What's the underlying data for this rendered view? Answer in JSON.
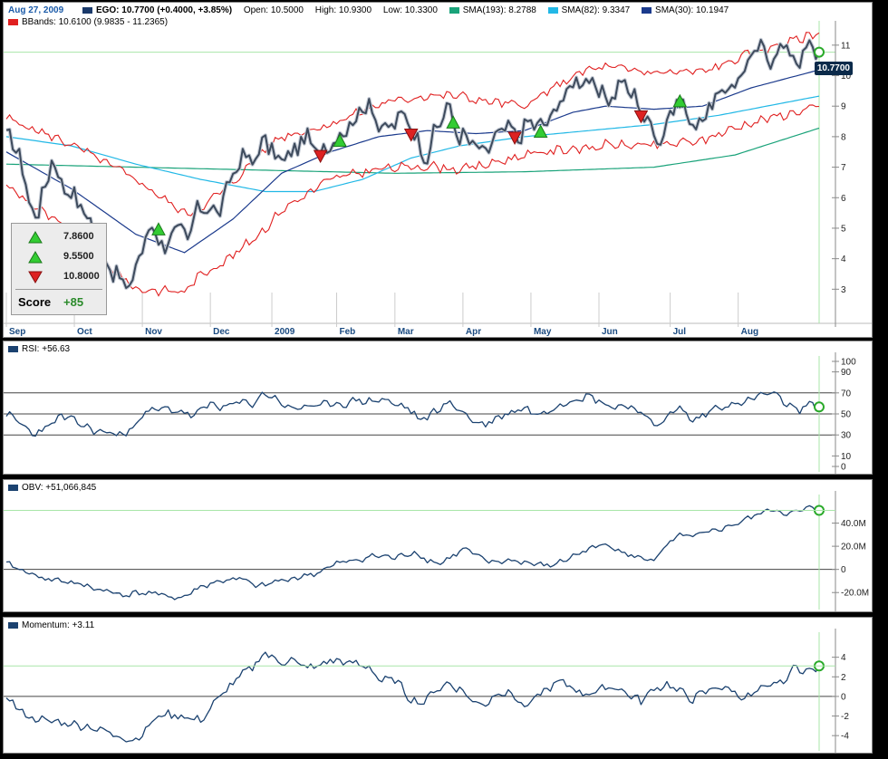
{
  "header": {
    "date": "Aug 27, 2009",
    "ticker_label": "EGO: 10.7700 (+0.4000, +3.85%)",
    "open": "Open: 10.5000",
    "high": "High: 10.9300",
    "low": "Low: 10.3300",
    "sma193": "SMA(193): 8.2788",
    "sma82": "SMA(82): 9.3347",
    "sma30": "SMA(30): 10.1947",
    "bbands": "BBands: 10.6100 (9.9835 - 11.2365)"
  },
  "colors": {
    "price": "#3d4a5c",
    "sma193": "#1aa37a",
    "sma82": "#22b8e6",
    "sma30": "#1b3a8c",
    "bbands": "#e02020",
    "indicator": "#1b4270",
    "buy": "#33cc33",
    "sell": "#dd2222"
  },
  "price_tag": "10.7700",
  "score_box": {
    "signals": [
      {
        "icon": "buy-signal-icon",
        "value": "7.8600"
      },
      {
        "icon": "buy-signal-icon",
        "value": "9.5500"
      },
      {
        "icon": "sell-signal-icon",
        "value": "10.8000"
      }
    ],
    "label": "Score",
    "score": "+85"
  },
  "rsi_label": "RSI: +56.63",
  "obv_label": "OBV: +51,066,845",
  "momentum_label": "Momentum: +3.11",
  "chart_data": [
    {
      "type": "line",
      "panel": "price",
      "x_labels": [
        "Sep",
        "Oct",
        "Nov",
        "Dec",
        "2009",
        "Feb",
        "Mar",
        "Apr",
        "May",
        "Jun",
        "Jul",
        "Aug"
      ],
      "x_label_index": [
        0,
        21,
        42,
        63,
        82,
        102,
        120,
        141,
        162,
        183,
        205,
        226
      ],
      "ylim": [
        2,
        11.5
      ],
      "yticks": [
        3,
        4,
        5,
        6,
        7,
        8,
        9,
        10,
        11
      ],
      "price_anchors": [
        [
          0,
          8
        ],
        [
          4,
          7.5
        ],
        [
          7,
          5.8
        ],
        [
          10,
          5.5
        ],
        [
          14,
          7.3
        ],
        [
          17,
          6.5
        ],
        [
          22,
          5.9
        ],
        [
          26,
          5.2
        ],
        [
          30,
          4.1
        ],
        [
          35,
          3.3
        ],
        [
          38,
          3.0
        ],
        [
          41,
          4.1
        ],
        [
          44,
          4.9
        ],
        [
          46,
          5.0
        ],
        [
          49,
          4.3
        ],
        [
          52,
          5.0
        ],
        [
          56,
          4.6
        ],
        [
          58,
          5.4
        ],
        [
          62,
          5.8
        ],
        [
          65,
          5.4
        ],
        [
          68,
          6.2
        ],
        [
          72,
          7.3
        ],
        [
          76,
          7.2
        ],
        [
          80,
          7.9
        ],
        [
          84,
          7.2
        ],
        [
          88,
          7.4
        ],
        [
          92,
          8.0
        ],
        [
          96,
          7.5
        ],
        [
          100,
          7.8
        ],
        [
          104,
          8.2
        ],
        [
          108,
          8.6
        ],
        [
          112,
          9.2
        ],
        [
          116,
          8.1
        ],
        [
          120,
          8.5
        ],
        [
          124,
          8.7
        ],
        [
          127,
          7.8
        ],
        [
          130,
          7.4
        ],
        [
          133,
          8.3
        ],
        [
          136,
          9.0
        ],
        [
          140,
          8.0
        ],
        [
          144,
          7.8
        ],
        [
          147,
          7.4
        ],
        [
          150,
          7.8
        ],
        [
          154,
          8.3
        ],
        [
          158,
          8.0
        ],
        [
          162,
          8.5
        ],
        [
          166,
          8.3
        ],
        [
          170,
          9.0
        ],
        [
          174,
          9.6
        ],
        [
          178,
          10.0
        ],
        [
          182,
          9.5
        ],
        [
          186,
          9.2
        ],
        [
          190,
          9.8
        ],
        [
          194,
          9.3
        ],
        [
          198,
          8.5
        ],
        [
          202,
          7.9
        ],
        [
          205,
          8.8
        ],
        [
          208,
          9.2
        ],
        [
          212,
          8.3
        ],
        [
          216,
          8.8
        ],
        [
          220,
          9.3
        ],
        [
          224,
          9.7
        ],
        [
          228,
          10.2
        ],
        [
          232,
          10.9
        ],
        [
          236,
          10.6
        ],
        [
          240,
          11.0
        ],
        [
          244,
          10.5
        ],
        [
          248,
          10.9
        ],
        [
          251,
          10.8
        ]
      ],
      "sma193_anchors": [
        [
          0,
          7.1
        ],
        [
          40,
          7.0
        ],
        [
          80,
          6.9
        ],
        [
          120,
          6.8
        ],
        [
          160,
          6.85
        ],
        [
          200,
          7.0
        ],
        [
          225,
          7.4
        ],
        [
          251,
          8.28
        ]
      ],
      "sma82_anchors": [
        [
          0,
          8.0
        ],
        [
          20,
          7.7
        ],
        [
          40,
          7.1
        ],
        [
          60,
          6.6
        ],
        [
          80,
          6.2
        ],
        [
          95,
          6.2
        ],
        [
          110,
          6.6
        ],
        [
          125,
          7.3
        ],
        [
          140,
          7.7
        ],
        [
          160,
          8.0
        ],
        [
          180,
          8.2
        ],
        [
          200,
          8.4
        ],
        [
          220,
          8.7
        ],
        [
          251,
          9.33
        ]
      ],
      "sma30_anchors": [
        [
          0,
          7.5
        ],
        [
          20,
          6.3
        ],
        [
          40,
          4.8
        ],
        [
          55,
          4.2
        ],
        [
          70,
          5.3
        ],
        [
          85,
          6.8
        ],
        [
          100,
          7.5
        ],
        [
          115,
          8.0
        ],
        [
          130,
          8.2
        ],
        [
          145,
          8.1
        ],
        [
          160,
          8.2
        ],
        [
          175,
          8.8
        ],
        [
          185,
          9.0
        ],
        [
          200,
          8.9
        ],
        [
          215,
          9.0
        ],
        [
          230,
          9.6
        ],
        [
          251,
          10.19
        ]
      ],
      "bb_half_width_anchors": [
        [
          0,
          1.1
        ],
        [
          40,
          1.8
        ],
        [
          60,
          1.1
        ],
        [
          80,
          1.3
        ],
        [
          100,
          0.9
        ],
        [
          120,
          1.1
        ],
        [
          140,
          1.2
        ],
        [
          160,
          0.8
        ],
        [
          180,
          1.3
        ],
        [
          200,
          1.2
        ],
        [
          220,
          1.1
        ],
        [
          251,
          1.2
        ]
      ],
      "buy_signals": [
        [
          47,
          4.9
        ],
        [
          103,
          7.8
        ],
        [
          138,
          8.4
        ],
        [
          165,
          8.1
        ],
        [
          208,
          9.1
        ]
      ],
      "sell_signals": [
        [
          97,
          7.4
        ],
        [
          125,
          8.1
        ],
        [
          157,
          8.0
        ],
        [
          196,
          8.7
        ]
      ],
      "last_close": 10.77
    },
    {
      "type": "line",
      "panel": "rsi",
      "ylim": [
        0,
        100
      ],
      "yticks": [
        0,
        10,
        30,
        50,
        70,
        90,
        100
      ],
      "ref_lines": [
        30,
        50,
        70
      ],
      "anchors": [
        [
          0,
          50
        ],
        [
          4,
          42
        ],
        [
          8,
          31
        ],
        [
          12,
          36
        ],
        [
          17,
          48
        ],
        [
          22,
          42
        ],
        [
          27,
          34
        ],
        [
          32,
          32
        ],
        [
          37,
          30
        ],
        [
          42,
          50
        ],
        [
          48,
          55
        ],
        [
          53,
          53
        ],
        [
          58,
          48
        ],
        [
          63,
          60
        ],
        [
          67,
          56
        ],
        [
          72,
          61
        ],
        [
          76,
          60
        ],
        [
          80,
          70
        ],
        [
          84,
          63
        ],
        [
          88,
          54
        ],
        [
          92,
          58
        ],
        [
          96,
          56
        ],
        [
          100,
          61
        ],
        [
          104,
          59
        ],
        [
          108,
          63
        ],
        [
          112,
          62
        ],
        [
          116,
          64
        ],
        [
          120,
          59
        ],
        [
          124,
          56
        ],
        [
          128,
          43
        ],
        [
          132,
          52
        ],
        [
          136,
          60
        ],
        [
          140,
          55
        ],
        [
          144,
          43
        ],
        [
          148,
          40
        ],
        [
          152,
          47
        ],
        [
          156,
          52
        ],
        [
          160,
          56
        ],
        [
          164,
          49
        ],
        [
          168,
          55
        ],
        [
          172,
          60
        ],
        [
          176,
          65
        ],
        [
          180,
          67
        ],
        [
          184,
          61
        ],
        [
          188,
          56
        ],
        [
          192,
          59
        ],
        [
          196,
          51
        ],
        [
          200,
          39
        ],
        [
          204,
          47
        ],
        [
          208,
          56
        ],
        [
          212,
          43
        ],
        [
          216,
          50
        ],
        [
          220,
          58
        ],
        [
          224,
          58
        ],
        [
          228,
          61
        ],
        [
          232,
          67
        ],
        [
          236,
          70
        ],
        [
          240,
          62
        ],
        [
          244,
          53
        ],
        [
          248,
          59
        ],
        [
          251,
          56.63
        ]
      ]
    },
    {
      "type": "line",
      "panel": "obv",
      "ylim": [
        -30,
        60
      ],
      "yticks": [
        -20,
        0,
        20,
        40
      ],
      "ytick_labels": [
        "-20.0M",
        "0",
        "20.0M",
        "40.0M"
      ],
      "ref_lines": [
        0
      ],
      "anchors": [
        [
          0,
          5
        ],
        [
          6,
          -2
        ],
        [
          12,
          -8
        ],
        [
          18,
          -10
        ],
        [
          24,
          -14
        ],
        [
          30,
          -18
        ],
        [
          36,
          -22
        ],
        [
          42,
          -20
        ],
        [
          48,
          -22
        ],
        [
          54,
          -25
        ],
        [
          60,
          -15
        ],
        [
          66,
          -10
        ],
        [
          72,
          -8
        ],
        [
          78,
          -15
        ],
        [
          84,
          -10
        ],
        [
          90,
          -7
        ],
        [
          96,
          -3
        ],
        [
          102,
          5
        ],
        [
          108,
          8
        ],
        [
          114,
          12
        ],
        [
          120,
          10
        ],
        [
          126,
          15
        ],
        [
          130,
          8
        ],
        [
          134,
          5
        ],
        [
          138,
          12
        ],
        [
          142,
          18
        ],
        [
          146,
          10
        ],
        [
          150,
          6
        ],
        [
          156,
          8
        ],
        [
          162,
          5
        ],
        [
          168,
          3
        ],
        [
          174,
          10
        ],
        [
          180,
          18
        ],
        [
          186,
          22
        ],
        [
          192,
          12
        ],
        [
          196,
          10
        ],
        [
          200,
          8
        ],
        [
          204,
          20
        ],
        [
          208,
          30
        ],
        [
          212,
          28
        ],
        [
          218,
          33
        ],
        [
          224,
          38
        ],
        [
          230,
          45
        ],
        [
          236,
          52
        ],
        [
          242,
          48
        ],
        [
          248,
          53
        ],
        [
          251,
          51
        ]
      ]
    },
    {
      "type": "line",
      "panel": "momentum",
      "ylim": [
        -5,
        6
      ],
      "yticks": [
        -4,
        -2,
        0,
        2,
        4
      ],
      "ytick_labels": [
        "-4",
        "-2",
        "0",
        "2",
        "4"
      ],
      "ref_lines": [
        0
      ],
      "anchors": [
        [
          0,
          0
        ],
        [
          6,
          -2
        ],
        [
          12,
          -2.5
        ],
        [
          18,
          -2.7
        ],
        [
          24,
          -3.0
        ],
        [
          30,
          -3.5
        ],
        [
          36,
          -4.2
        ],
        [
          40,
          -4.5
        ],
        [
          44,
          -3.0
        ],
        [
          48,
          -1.8
        ],
        [
          54,
          -2.0
        ],
        [
          60,
          -2.5
        ],
        [
          66,
          0
        ],
        [
          72,
          2.0
        ],
        [
          76,
          3.0
        ],
        [
          80,
          4.5
        ],
        [
          84,
          3.5
        ],
        [
          88,
          3.7
        ],
        [
          92,
          3.0
        ],
        [
          96,
          3.0
        ],
        [
          100,
          3.7
        ],
        [
          104,
          3.5
        ],
        [
          108,
          3.3
        ],
        [
          112,
          3.0
        ],
        [
          116,
          1.5
        ],
        [
          120,
          1.8
        ],
        [
          124,
          0
        ],
        [
          128,
          -0.8
        ],
        [
          132,
          0.5
        ],
        [
          136,
          1.3
        ],
        [
          140,
          0.8
        ],
        [
          144,
          -0.5
        ],
        [
          148,
          -0.8
        ],
        [
          152,
          0.5
        ],
        [
          156,
          0.2
        ],
        [
          160,
          -1.0
        ],
        [
          164,
          0
        ],
        [
          168,
          1.0
        ],
        [
          172,
          1.5
        ],
        [
          176,
          0.6
        ],
        [
          180,
          0.2
        ],
        [
          184,
          0.8
        ],
        [
          188,
          1.0
        ],
        [
          192,
          0.2
        ],
        [
          196,
          -0.5
        ],
        [
          200,
          0.8
        ],
        [
          204,
          1.2
        ],
        [
          208,
          0.5
        ],
        [
          212,
          -0.3
        ],
        [
          216,
          0.5
        ],
        [
          220,
          1.0
        ],
        [
          224,
          0.6
        ],
        [
          228,
          -0.2
        ],
        [
          232,
          0.5
        ],
        [
          236,
          1.0
        ],
        [
          240,
          1.8
        ],
        [
          244,
          3.0
        ],
        [
          248,
          2.5
        ],
        [
          251,
          3.11
        ]
      ]
    }
  ]
}
